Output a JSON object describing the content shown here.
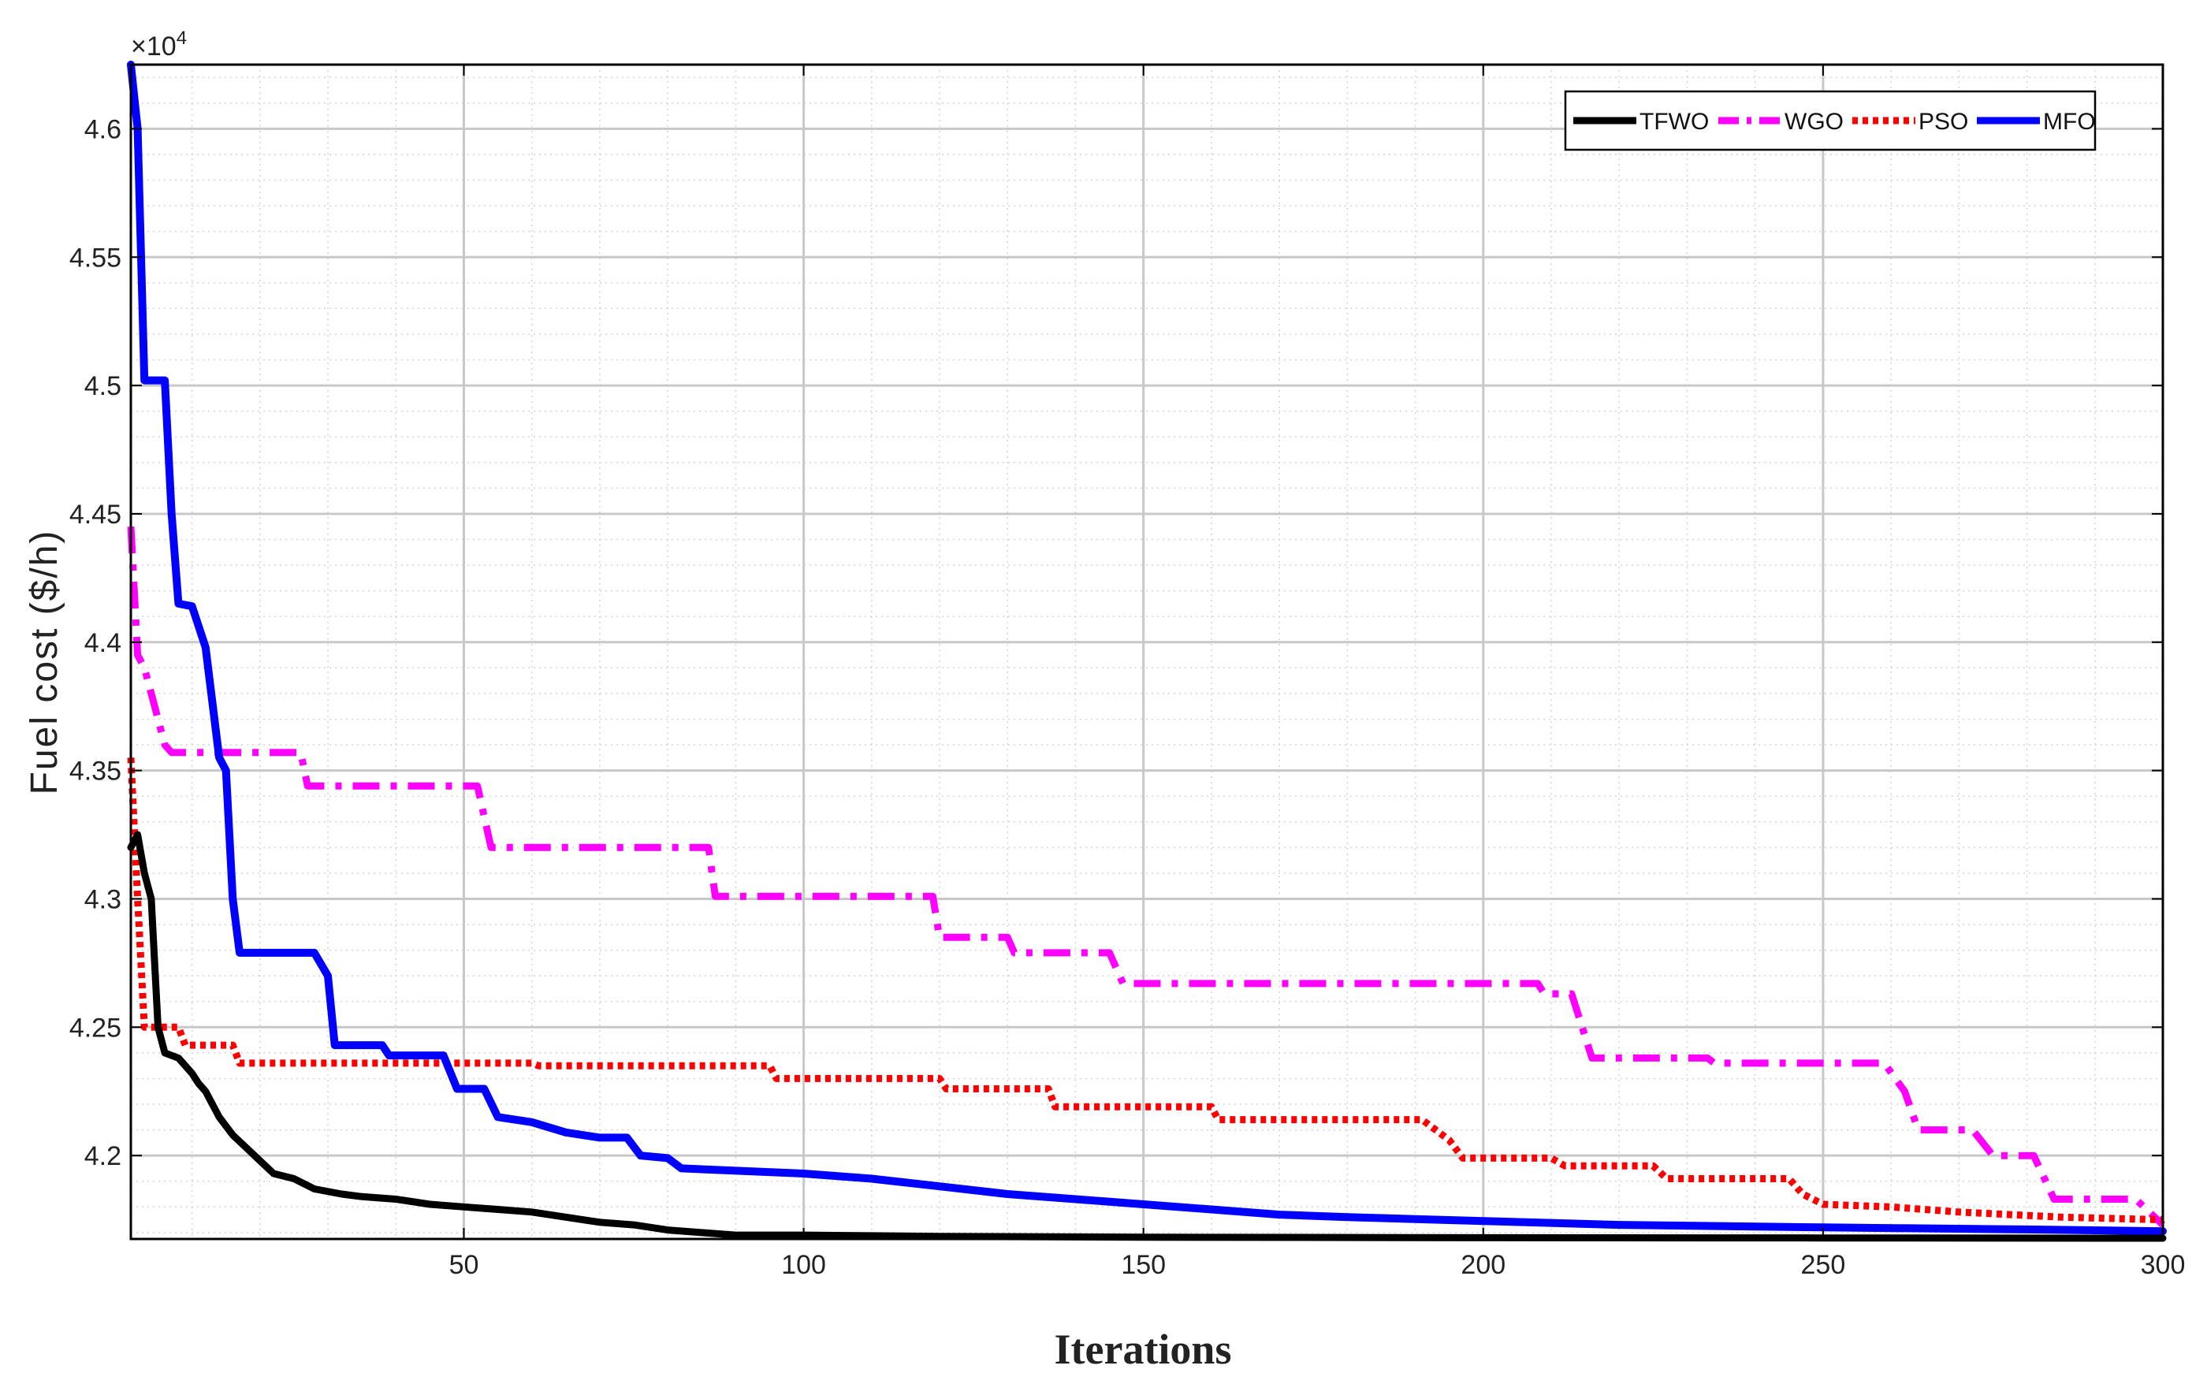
{
  "chart_data": {
    "type": "line",
    "xlabel": "Iterations",
    "ylabel": "Fuel cost ($/h)",
    "y_exponent_base": "×10",
    "y_exponent_power": "4",
    "xlim": [
      1,
      300
    ],
    "ylim": [
      4.1675,
      4.625
    ],
    "x_ticks": [
      50,
      100,
      150,
      200,
      250,
      300
    ],
    "x_tick_labels": [
      "50",
      "100",
      "150",
      "200",
      "250",
      "300"
    ],
    "y_ticks": [
      4.2,
      4.25,
      4.3,
      4.35,
      4.4,
      4.45,
      4.5,
      4.55,
      4.6
    ],
    "y_tick_labels": [
      "4.2",
      "4.25",
      "4.3",
      "4.35",
      "4.4",
      "4.45",
      "4.5",
      "4.55",
      "4.6"
    ],
    "grid": true,
    "minor_grid": true,
    "legend_position": "top-right",
    "legend_orientation": "horizontal",
    "series": [
      {
        "name": "TFWO",
        "color": "#000000",
        "style": "solid",
        "points": [
          [
            1,
            4.32
          ],
          [
            2,
            4.325
          ],
          [
            3,
            4.31
          ],
          [
            4,
            4.3
          ],
          [
            5,
            4.25
          ],
          [
            6,
            4.24
          ],
          [
            8,
            4.238
          ],
          [
            10,
            4.232
          ],
          [
            11,
            4.228
          ],
          [
            12,
            4.225
          ],
          [
            14,
            4.215
          ],
          [
            16,
            4.208
          ],
          [
            18,
            4.203
          ],
          [
            20,
            4.198
          ],
          [
            22,
            4.193
          ],
          [
            25,
            4.191
          ],
          [
            28,
            4.187
          ],
          [
            32,
            4.185
          ],
          [
            35,
            4.184
          ],
          [
            40,
            4.183
          ],
          [
            45,
            4.181
          ],
          [
            50,
            4.18
          ],
          [
            55,
            4.179
          ],
          [
            60,
            4.178
          ],
          [
            65,
            4.176
          ],
          [
            70,
            4.174
          ],
          [
            75,
            4.173
          ],
          [
            80,
            4.171
          ],
          [
            85,
            4.17
          ],
          [
            90,
            4.169
          ],
          [
            100,
            4.169
          ],
          [
            120,
            4.1685
          ],
          [
            150,
            4.1682
          ],
          [
            200,
            4.168
          ],
          [
            250,
            4.1679
          ],
          [
            300,
            4.1678
          ]
        ]
      },
      {
        "name": "WGO",
        "color": "#ff00ff",
        "style": "dashdot",
        "points": [
          [
            1,
            4.445
          ],
          [
            2,
            4.395
          ],
          [
            3,
            4.39
          ],
          [
            4,
            4.38
          ],
          [
            5,
            4.37
          ],
          [
            6,
            4.36
          ],
          [
            7,
            4.357
          ],
          [
            26,
            4.357
          ],
          [
            27,
            4.344
          ],
          [
            52,
            4.344
          ],
          [
            54,
            4.32
          ],
          [
            86,
            4.32
          ],
          [
            87,
            4.301
          ],
          [
            119,
            4.301
          ],
          [
            120,
            4.285
          ],
          [
            130,
            4.285
          ],
          [
            131,
            4.279
          ],
          [
            145,
            4.279
          ],
          [
            147,
            4.267
          ],
          [
            208,
            4.267
          ],
          [
            209,
            4.263
          ],
          [
            213,
            4.263
          ],
          [
            216,
            4.238
          ],
          [
            233,
            4.238
          ],
          [
            234,
            4.236
          ],
          [
            259,
            4.236
          ],
          [
            262,
            4.225
          ],
          [
            264,
            4.21
          ],
          [
            272,
            4.21
          ],
          [
            275,
            4.2
          ],
          [
            281,
            4.2
          ],
          [
            284,
            4.183
          ],
          [
            296,
            4.183
          ],
          [
            300,
            4.173
          ]
        ]
      },
      {
        "name": "PSO",
        "color": "#ff0000",
        "style": "dotted",
        "points": [
          [
            1,
            4.355
          ],
          [
            2,
            4.3
          ],
          [
            3,
            4.25
          ],
          [
            8,
            4.25
          ],
          [
            9,
            4.243
          ],
          [
            16,
            4.243
          ],
          [
            17,
            4.236
          ],
          [
            60,
            4.236
          ],
          [
            61,
            4.235
          ],
          [
            95,
            4.235
          ],
          [
            96,
            4.23
          ],
          [
            120,
            4.23
          ],
          [
            121,
            4.226
          ],
          [
            136,
            4.226
          ],
          [
            137,
            4.219
          ],
          [
            160,
            4.219
          ],
          [
            161,
            4.214
          ],
          [
            191,
            4.214
          ],
          [
            195,
            4.206
          ],
          [
            197,
            4.199
          ],
          [
            210,
            4.199
          ],
          [
            212,
            4.196
          ],
          [
            225,
            4.196
          ],
          [
            227,
            4.191
          ],
          [
            245,
            4.191
          ],
          [
            247,
            4.185
          ],
          [
            250,
            4.181
          ],
          [
            260,
            4.18
          ],
          [
            270,
            4.178
          ],
          [
            285,
            4.176
          ],
          [
            300,
            4.175
          ]
        ]
      },
      {
        "name": "MFO",
        "color": "#0000ff",
        "style": "solid",
        "points": [
          [
            1,
            4.625
          ],
          [
            2,
            4.6
          ],
          [
            3,
            4.502
          ],
          [
            6,
            4.502
          ],
          [
            7,
            4.45
          ],
          [
            8,
            4.415
          ],
          [
            10,
            4.414
          ],
          [
            12,
            4.398
          ],
          [
            14,
            4.355
          ],
          [
            15,
            4.35
          ],
          [
            16,
            4.3
          ],
          [
            17,
            4.279
          ],
          [
            28,
            4.279
          ],
          [
            30,
            4.27
          ],
          [
            31,
            4.243
          ],
          [
            38,
            4.243
          ],
          [
            39,
            4.239
          ],
          [
            47,
            4.239
          ],
          [
            49,
            4.226
          ],
          [
            53,
            4.226
          ],
          [
            55,
            4.215
          ],
          [
            60,
            4.213
          ],
          [
            65,
            4.209
          ],
          [
            70,
            4.207
          ],
          [
            74,
            4.207
          ],
          [
            76,
            4.2
          ],
          [
            80,
            4.199
          ],
          [
            82,
            4.195
          ],
          [
            100,
            4.193
          ],
          [
            110,
            4.191
          ],
          [
            120,
            4.188
          ],
          [
            130,
            4.185
          ],
          [
            140,
            4.183
          ],
          [
            150,
            4.181
          ],
          [
            160,
            4.179
          ],
          [
            170,
            4.177
          ],
          [
            180,
            4.176
          ],
          [
            200,
            4.1745
          ],
          [
            220,
            4.173
          ],
          [
            250,
            4.172
          ],
          [
            280,
            4.1712
          ],
          [
            300,
            4.1705
          ]
        ]
      }
    ]
  }
}
